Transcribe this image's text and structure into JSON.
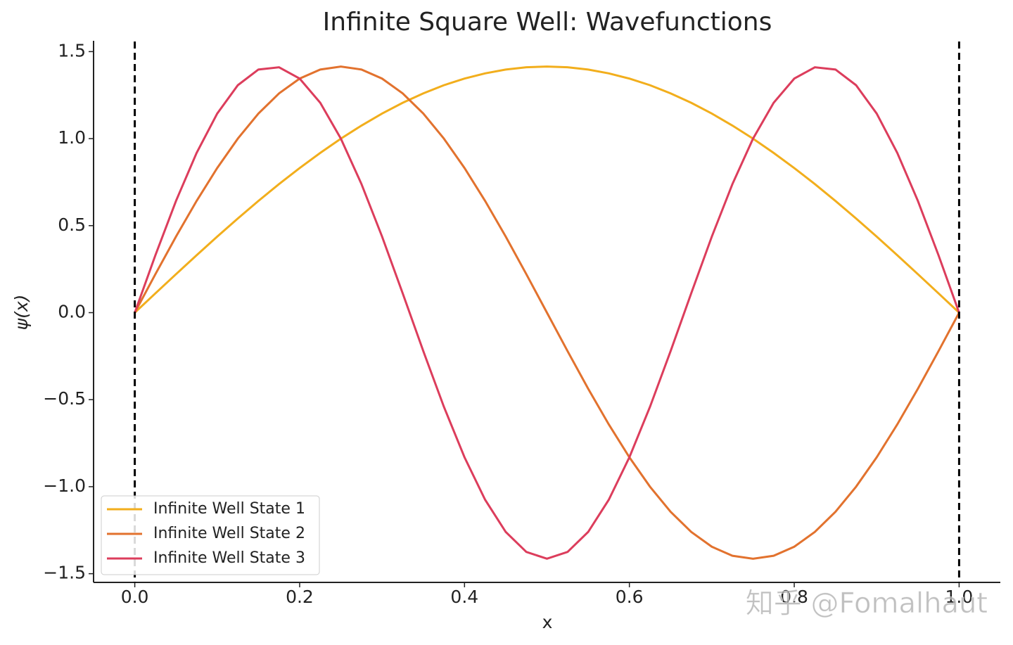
{
  "chart_data": {
    "type": "line",
    "title": "Infinite Square Well: Wavefunctions",
    "xlabel": "x",
    "ylabel": "ψ(x)",
    "x": [
      0,
      0.025,
      0.05,
      0.075,
      0.1,
      0.125,
      0.15,
      0.175,
      0.2,
      0.225,
      0.25,
      0.275,
      0.3,
      0.325,
      0.35,
      0.375,
      0.4,
      0.425,
      0.45,
      0.475,
      0.5,
      0.525,
      0.55,
      0.575,
      0.6,
      0.625,
      0.65,
      0.675,
      0.7,
      0.725,
      0.75,
      0.775,
      0.8,
      0.825,
      0.85,
      0.875,
      0.9,
      0.925,
      0.95,
      0.975,
      1
    ],
    "series": [
      {
        "name": "Infinite Well State 1",
        "color": "#f2ae1c",
        "values": [
          0,
          0.111,
          0.221,
          0.33,
          0.437,
          0.541,
          0.642,
          0.739,
          0.831,
          0.918,
          1.0,
          1.075,
          1.144,
          1.206,
          1.26,
          1.307,
          1.345,
          1.375,
          1.397,
          1.41,
          1.414,
          1.41,
          1.397,
          1.375,
          1.345,
          1.307,
          1.26,
          1.206,
          1.144,
          1.075,
          1.0,
          0.918,
          0.831,
          0.739,
          0.642,
          0.541,
          0.437,
          0.33,
          0.221,
          0.111,
          0
        ]
      },
      {
        "name": "Infinite Well State 2",
        "color": "#e2722e",
        "values": [
          0,
          0.221,
          0.437,
          0.642,
          0.831,
          1.0,
          1.144,
          1.26,
          1.345,
          1.397,
          1.414,
          1.397,
          1.345,
          1.26,
          1.144,
          1.0,
          0.831,
          0.642,
          0.437,
          0.221,
          0,
          -0.221,
          -0.437,
          -0.642,
          -0.831,
          -1.0,
          -1.144,
          -1.26,
          -1.345,
          -1.397,
          -1.414,
          -1.397,
          -1.345,
          -1.26,
          -1.144,
          -1.0,
          -0.831,
          -0.642,
          -0.437,
          -0.221,
          0
        ]
      },
      {
        "name": "Infinite Well State 3",
        "color": "#dc3d5c",
        "values": [
          0,
          0.33,
          0.642,
          0.918,
          1.144,
          1.307,
          1.397,
          1.41,
          1.345,
          1.206,
          1.0,
          0.739,
          0.437,
          0.111,
          -0.221,
          -0.541,
          -0.831,
          -1.075,
          -1.26,
          -1.375,
          -1.414,
          -1.375,
          -1.26,
          -1.075,
          -0.831,
          -0.541,
          -0.221,
          0.111,
          0.437,
          0.739,
          1.0,
          1.206,
          1.345,
          1.41,
          1.397,
          1.307,
          1.144,
          0.918,
          0.642,
          0.33,
          0
        ]
      }
    ],
    "vlines": [
      0,
      1
    ],
    "xlim": [
      -0.05,
      1.05
    ],
    "ylim": [
      -1.55,
      1.55
    ],
    "xticks": [
      {
        "value": 0,
        "label": "0.0"
      },
      {
        "value": 0.2,
        "label": "0.2"
      },
      {
        "value": 0.4,
        "label": "0.4"
      },
      {
        "value": 0.6,
        "label": "0.6"
      },
      {
        "value": 0.8,
        "label": "0.8"
      },
      {
        "value": 1,
        "label": "1.0"
      }
    ],
    "yticks": [
      {
        "value": -1.5,
        "label": "−1.5"
      },
      {
        "value": -1,
        "label": "−1.0"
      },
      {
        "value": -0.5,
        "label": "−0.5"
      },
      {
        "value": 0,
        "label": "0.0"
      },
      {
        "value": 0.5,
        "label": "0.5"
      },
      {
        "value": 1,
        "label": "1.0"
      },
      {
        "value": 1.5,
        "label": "1.5"
      }
    ],
    "legend": "lower left",
    "grid": false,
    "watermark": "知乎 @Fomalhaut"
  }
}
